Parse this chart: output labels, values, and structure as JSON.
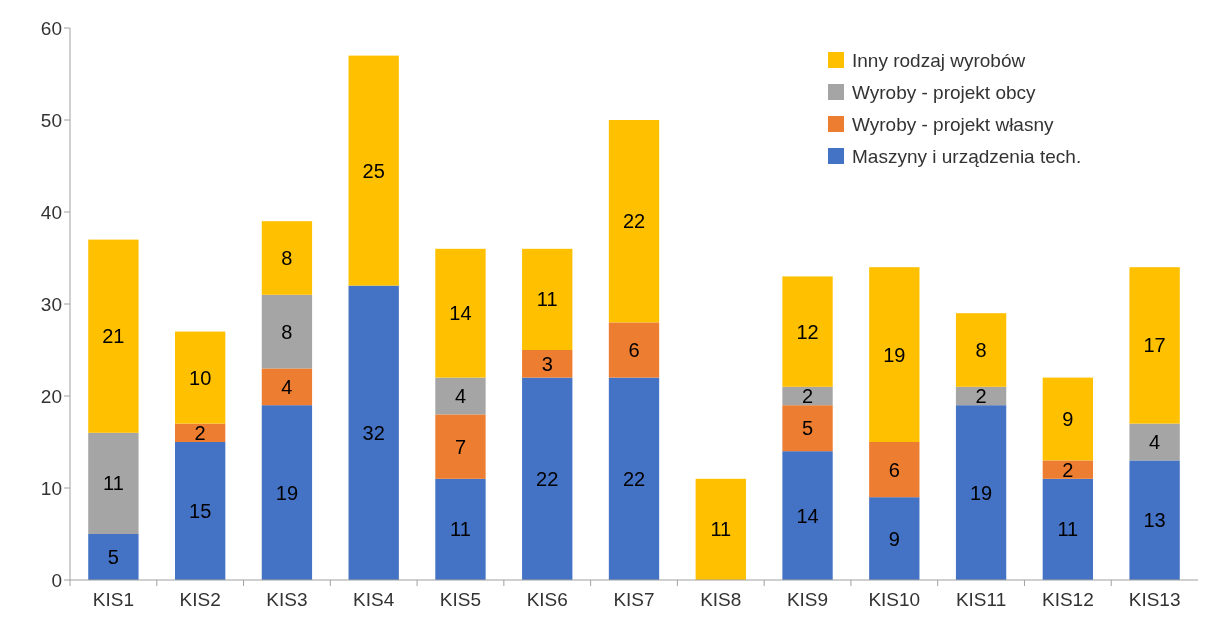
{
  "chart_data": {
    "type": "bar",
    "stacked": true,
    "categories": [
      "KIS1",
      "KIS2",
      "KIS3",
      "KIS4",
      "KIS5",
      "KIS6",
      "KIS7",
      "KIS8",
      "KIS9",
      "KIS10",
      "KIS11",
      "KIS12",
      "KIS13"
    ],
    "series": [
      {
        "name": "Maszyny i urządzenia tech.",
        "color": "#4472c4",
        "values": [
          5,
          15,
          19,
          32,
          11,
          22,
          22,
          null,
          14,
          9,
          19,
          11,
          13
        ]
      },
      {
        "name": "Wyroby - projekt własny",
        "color": "#ed7d31",
        "values": [
          null,
          2,
          4,
          null,
          7,
          3,
          6,
          null,
          5,
          6,
          null,
          2,
          null
        ]
      },
      {
        "name": "Wyroby - projekt obcy",
        "color": "#a5a5a5",
        "values": [
          11,
          null,
          8,
          null,
          4,
          null,
          null,
          null,
          2,
          null,
          2,
          null,
          4
        ]
      },
      {
        "name": "Inny rodzaj wyrobów",
        "color": "#ffc000",
        "values": [
          21,
          10,
          8,
          25,
          14,
          11,
          22,
          11,
          12,
          19,
          8,
          9,
          17
        ]
      }
    ],
    "data_labels": true,
    "ylim": [
      0,
      60
    ],
    "yticks": [
      0,
      10,
      20,
      30,
      40,
      50,
      60
    ],
    "grid": false,
    "legend": "top right"
  }
}
